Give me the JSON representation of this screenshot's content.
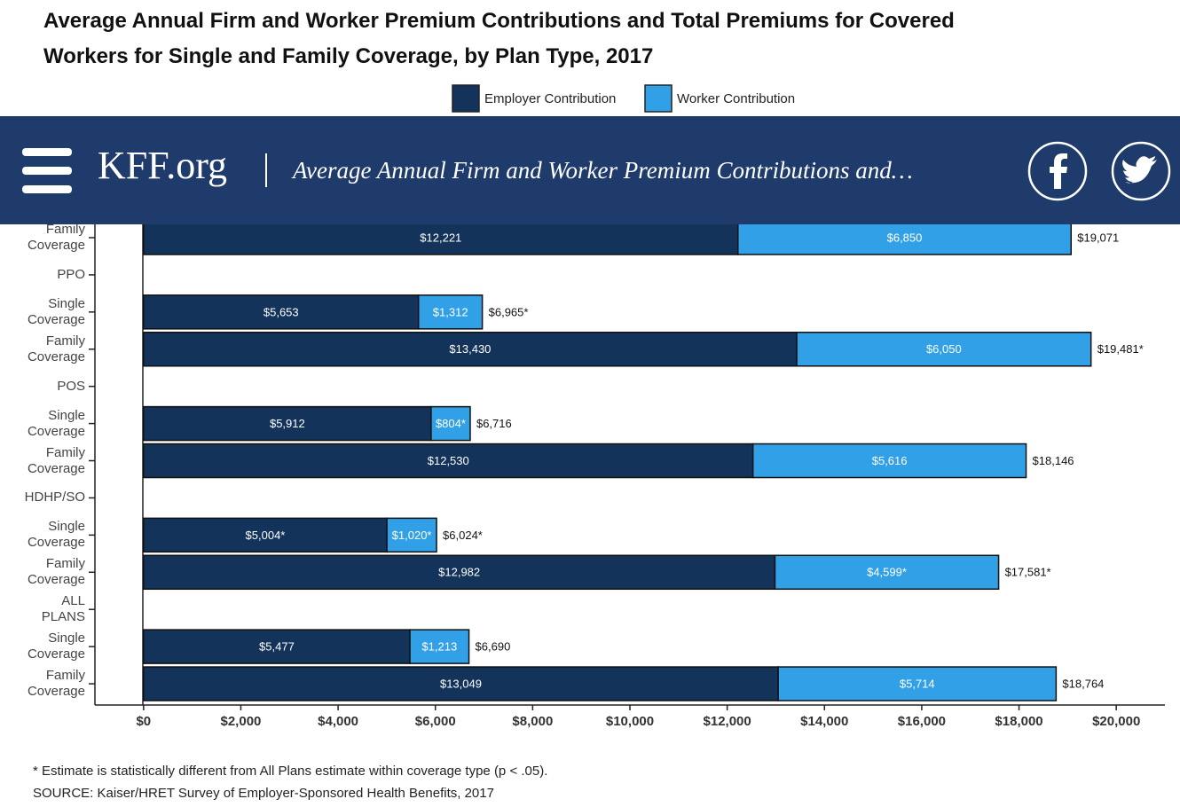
{
  "header": {
    "site": "KFF.org",
    "title": "Average Annual Firm and Worker Premium Contributions and…"
  },
  "chart_data": {
    "type": "stacked-barh",
    "title": "Average Annual Firm and Worker Premium Contributions and Total Premiums for Covered Workers for Single and Family Coverage, by Plan Type, 2017",
    "categories": [
      "Family Coverage",
      "PPO",
      "Single Coverage",
      "Family Coverage",
      "POS",
      "Single Coverage",
      "Family Coverage",
      "HDHP/SO",
      "Single Coverage",
      "Family Coverage",
      "ALL PLANS",
      "Single Coverage",
      "Family Coverage"
    ],
    "series": [
      {
        "name": "Employer Contribution",
        "color": "#13335a",
        "values": [
          12221,
          null,
          5653,
          13430,
          null,
          5912,
          12530,
          null,
          5004,
          12982,
          null,
          5477,
          13049
        ],
        "value_labels": [
          "$12,221",
          null,
          "$5,653",
          "$13,430",
          null,
          "$5,912",
          "$12,530",
          null,
          "$5,004*",
          "$12,982",
          null,
          "$5,477",
          "$13,049"
        ]
      },
      {
        "name": "Worker Contribution",
        "color": "#31a0e6",
        "values": [
          6850,
          null,
          1312,
          6050,
          null,
          804,
          5616,
          null,
          1020,
          4599,
          null,
          1213,
          5714
        ],
        "value_labels": [
          "$6,850",
          null,
          "$1,312",
          "$6,050",
          null,
          "$804*",
          "$5,616",
          null,
          "$1,020*",
          "$4,599*",
          null,
          "$1,213",
          "$5,714"
        ]
      }
    ],
    "totals": [
      19071,
      null,
      6965,
      19481,
      null,
      6716,
      18146,
      null,
      6024,
      17581,
      null,
      6690,
      18764
    ],
    "total_labels": [
      "$19,071",
      null,
      "$6,965*",
      "$19,481*",
      null,
      "$6,716",
      "$18,146",
      null,
      "$6,024*",
      "$17,581*",
      null,
      "$6,690",
      "$18,764"
    ],
    "xlim": [
      -1000,
      21000
    ],
    "xticks": [
      {
        "value": 0,
        "label": "$0"
      },
      {
        "value": 2000,
        "label": "$2,000"
      },
      {
        "value": 4000,
        "label": "$4,000"
      },
      {
        "value": 6000,
        "label": "$6,000"
      },
      {
        "value": 8000,
        "label": "$8,000"
      },
      {
        "value": 10000,
        "label": "$10,000"
      },
      {
        "value": 12000,
        "label": "$12,000"
      },
      {
        "value": 14000,
        "label": "$14,000"
      },
      {
        "value": 16000,
        "label": "$16,000"
      },
      {
        "value": 18000,
        "label": "$18,000"
      },
      {
        "value": 20000,
        "label": "$20,000"
      }
    ],
    "note": "* Estimate is statistically different from All Plans estimate within coverage type (p < .05).",
    "source": "SOURCE: Kaiser/HRET Survey of Employer-Sponsored Health Benefits, 2017"
  }
}
